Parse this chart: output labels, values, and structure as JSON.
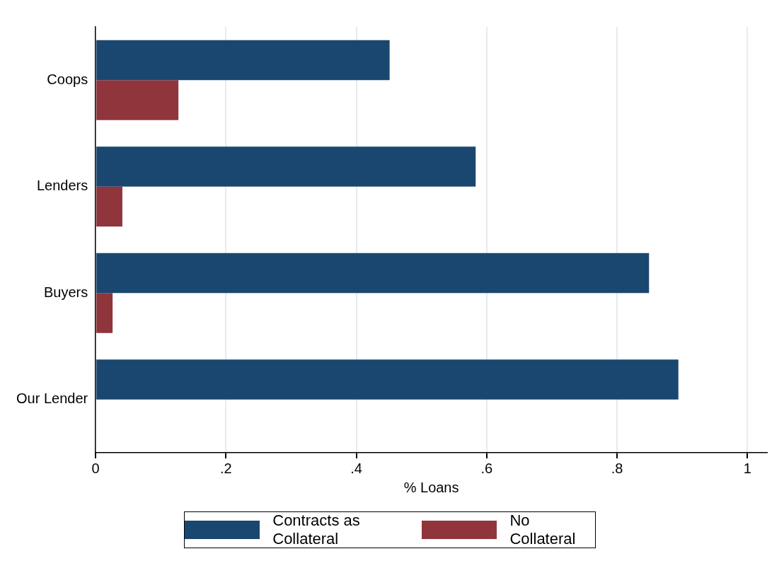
{
  "chart_data": {
    "type": "bar",
    "orientation": "horizontal",
    "xlabel": "% Loans",
    "categories": [
      "Coops",
      "Lenders",
      "Buyers",
      "Our Lender"
    ],
    "series": [
      {
        "name": "Contracts as Collateral",
        "color": "#1a476f",
        "values": [
          0.451,
          0.583,
          0.849,
          0.894
        ]
      },
      {
        "name": "No Collateral",
        "color": "#90353b",
        "values": [
          0.127,
          0.041,
          0.026,
          0
        ]
      }
    ],
    "xlim": [
      0,
      1.03
    ],
    "xticks": [
      {
        "value": 0,
        "label": "0"
      },
      {
        "value": 0.2,
        "label": ".2"
      },
      {
        "value": 0.4,
        "label": ".4"
      },
      {
        "value": 0.6,
        "label": ".6"
      },
      {
        "value": 0.8,
        "label": ".8"
      },
      {
        "value": 1,
        "label": "1"
      }
    ],
    "grid": "x",
    "legend": "bottom"
  }
}
